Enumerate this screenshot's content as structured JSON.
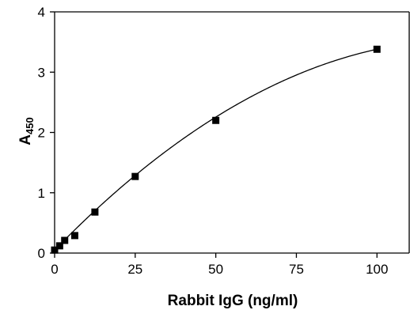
{
  "chart_data": {
    "type": "scatter",
    "title": "",
    "xlabel": "Rabbit IgG (ng/ml)",
    "ylabel": "A",
    "ylabel_subscript": "450",
    "xlim": [
      0,
      110
    ],
    "ylim": [
      0,
      4
    ],
    "xticks": [
      0,
      25,
      50,
      75,
      100
    ],
    "yticks": [
      0,
      1,
      2,
      3,
      4
    ],
    "grid": false,
    "legend": "none",
    "colors": {
      "axis": "#000000",
      "marker": "#000000",
      "curve": "#000000"
    },
    "series": [
      {
        "x": [
          0,
          1.5625,
          3.125,
          6.25,
          12.5,
          25,
          50,
          100
        ],
        "y": [
          0.05,
          0.12,
          0.21,
          0.29,
          0.68,
          1.27,
          2.2,
          3.38
        ]
      }
    ],
    "fit_curve": {
      "type": "quadratic",
      "coefficients": [
        0.05,
        0.0549,
        -0.000216
      ]
    }
  }
}
